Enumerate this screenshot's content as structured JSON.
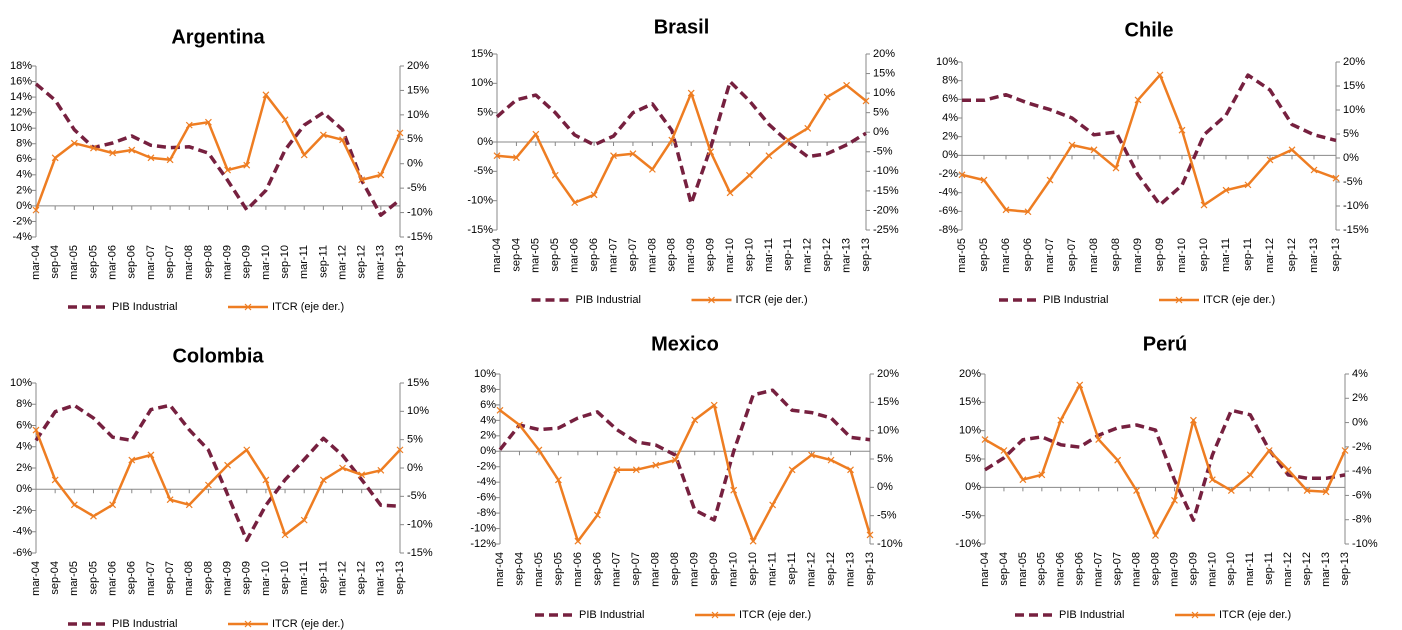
{
  "chart_data": [
    {
      "type": "line",
      "title": "Argentina",
      "categories": [
        "mar-04",
        "sep-04",
        "mar-05",
        "sep-05",
        "mar-06",
        "sep-06",
        "mar-07",
        "sep-07",
        "mar-08",
        "sep-08",
        "mar-09",
        "sep-09",
        "mar-10",
        "sep-10",
        "mar-11",
        "sep-11",
        "mar-12",
        "sep-12",
        "mar-13",
        "sep-13"
      ],
      "series": [
        {
          "name": "PIB Industrial",
          "color": "#76203f",
          "values": [
            15.7,
            13.6,
            9.8,
            7.5,
            8.1,
            9.0,
            7.8,
            7.5,
            7.6,
            6.8,
            3.3,
            -0.5,
            2.0,
            7.2,
            10.4,
            12.0,
            9.8,
            3.3,
            -1.2,
            0.8
          ]
        },
        {
          "name": "ITCR (eje der.)",
          "color": "#ee7d22",
          "axis": "y2",
          "values": [
            -9.5,
            1.2,
            4.2,
            3.2,
            2.2,
            2.8,
            1.2,
            0.8,
            7.9,
            8.5,
            -1.3,
            -0.3,
            14.1,
            9.0,
            1.8,
            5.9,
            4.9,
            -3.3,
            -2.3,
            6.3
          ]
        }
      ],
      "ylim": [
        -4,
        18
      ],
      "yticks": [
        {
          "value": -4,
          "label": "-4%"
        },
        {
          "value": -2,
          "label": "-2%"
        },
        {
          "value": 0,
          "label": "0%"
        },
        {
          "value": 2,
          "label": "2%"
        },
        {
          "value": 4,
          "label": "4%"
        },
        {
          "value": 6,
          "label": "6%"
        },
        {
          "value": 8,
          "label": "8%"
        },
        {
          "value": 10,
          "label": "10%"
        },
        {
          "value": 12,
          "label": "12%"
        },
        {
          "value": 14,
          "label": "14%"
        },
        {
          "value": 16,
          "label": "16%"
        },
        {
          "value": 18,
          "label": "18%"
        }
      ],
      "y2lim": [
        -15,
        20
      ],
      "y2ticks": [
        {
          "value": -15,
          "label": "-15%"
        },
        {
          "value": -10,
          "label": "-10%"
        },
        {
          "value": -5,
          "label": "-5%"
        },
        {
          "value": 0,
          "label": "0%"
        },
        {
          "value": 5,
          "label": "5%"
        },
        {
          "value": 10,
          "label": "10%"
        },
        {
          "value": 15,
          "label": "15%"
        },
        {
          "value": 20,
          "label": "20%"
        }
      ]
    },
    {
      "type": "line",
      "title": "Brasil",
      "categories": [
        "mar-04",
        "sep-04",
        "mar-05",
        "sep-05",
        "mar-06",
        "sep-06",
        "mar-07",
        "sep-07",
        "mar-08",
        "sep-08",
        "mar-09",
        "sep-09",
        "mar-10",
        "sep-10",
        "mar-11",
        "sep-11",
        "mar-12",
        "sep-12",
        "mar-13",
        "sep-13"
      ],
      "series": [
        {
          "name": "PIB Industrial",
          "color": "#76203f",
          "values": [
            4.3,
            7.2,
            8.0,
            5.0,
            1.2,
            -0.5,
            1.0,
            5.0,
            6.5,
            2.0,
            -10.5,
            -1.0,
            10.3,
            7.0,
            3.0,
            0.0,
            -2.5,
            -2.0,
            -0.5,
            1.5
          ]
        },
        {
          "name": "ITCR (eje der.)",
          "color": "#ee7d22",
          "axis": "y2",
          "values": [
            -6.0,
            -6.5,
            -0.5,
            -11.0,
            -18.0,
            -16.0,
            -6.0,
            -5.5,
            -9.5,
            -2.0,
            10.0,
            -5.0,
            -15.5,
            -11.0,
            -6.0,
            -2.0,
            1.0,
            9.0,
            12.0,
            8.0
          ]
        }
      ],
      "ylim": [
        -15,
        15
      ],
      "yticks": [
        {
          "value": -15,
          "label": "-15%"
        },
        {
          "value": -10,
          "label": "-10%"
        },
        {
          "value": -5,
          "label": "-5%"
        },
        {
          "value": 0,
          "label": "0%"
        },
        {
          "value": 5,
          "label": "5%"
        },
        {
          "value": 10,
          "label": "10%"
        },
        {
          "value": 15,
          "label": "15%"
        }
      ],
      "y2lim": [
        -25,
        20
      ],
      "y2ticks": [
        {
          "value": -25,
          "label": "-25%"
        },
        {
          "value": -20,
          "label": "-20%"
        },
        {
          "value": -15,
          "label": "-15%"
        },
        {
          "value": -10,
          "label": "-10%"
        },
        {
          "value": -5,
          "label": "-5%"
        },
        {
          "value": 0,
          "label": "0%"
        },
        {
          "value": 5,
          "label": "5%"
        },
        {
          "value": 10,
          "label": "10%"
        },
        {
          "value": 15,
          "label": "15%"
        },
        {
          "value": 20,
          "label": "20%"
        }
      ]
    },
    {
      "type": "line",
      "title": "Chile",
      "categories": [
        "mar-05",
        "sep-05",
        "mar-06",
        "sep-06",
        "mar-07",
        "sep-07",
        "mar-08",
        "sep-08",
        "mar-09",
        "sep-09",
        "mar-10",
        "sep-10",
        "mar-11",
        "sep-11",
        "mar-12",
        "sep-12",
        "mar-13",
        "sep-13"
      ],
      "series": [
        {
          "name": "PIB Industrial",
          "color": "#76203f",
          "values": [
            5.9,
            5.9,
            6.5,
            5.6,
            4.9,
            4.0,
            2.2,
            2.5,
            -2.1,
            -5.3,
            -3.2,
            2.2,
            4.3,
            8.6,
            7.0,
            3.3,
            2.2,
            1.6
          ]
        },
        {
          "name": "ITCR (eje der.)",
          "color": "#ee7d22",
          "axis": "y2",
          "values": [
            -3.5,
            -4.6,
            -10.8,
            -11.2,
            -4.6,
            2.7,
            1.7,
            -2.1,
            12.1,
            17.3,
            5.8,
            -9.8,
            -6.7,
            -5.6,
            -0.4,
            1.7,
            -2.5,
            -4.2
          ]
        }
      ],
      "ylim": [
        -8,
        10
      ],
      "yticks": [
        {
          "value": -8,
          "label": "-8%"
        },
        {
          "value": -6,
          "label": "-6%"
        },
        {
          "value": -4,
          "label": "-4%"
        },
        {
          "value": -2,
          "label": "-2%"
        },
        {
          "value": 0,
          "label": "0%"
        },
        {
          "value": 2,
          "label": "2%"
        },
        {
          "value": 4,
          "label": "4%"
        },
        {
          "value": 6,
          "label": "6%"
        },
        {
          "value": 8,
          "label": "8%"
        },
        {
          "value": 10,
          "label": "10%"
        }
      ],
      "y2lim": [
        -15,
        20
      ],
      "y2ticks": [
        {
          "value": -15,
          "label": "-15%"
        },
        {
          "value": -10,
          "label": "-10%"
        },
        {
          "value": -5,
          "label": "-5%"
        },
        {
          "value": 0,
          "label": "0%"
        },
        {
          "value": 5,
          "label": "5%"
        },
        {
          "value": 10,
          "label": "10%"
        },
        {
          "value": 15,
          "label": "15%"
        },
        {
          "value": 20,
          "label": "20%"
        }
      ]
    },
    {
      "type": "line",
      "title": "Colombia",
      "categories": [
        "mar-04",
        "sep-04",
        "mar-05",
        "sep-05",
        "mar-06",
        "sep-06",
        "mar-07",
        "sep-07",
        "mar-08",
        "sep-08",
        "mar-09",
        "sep-09",
        "mar-10",
        "sep-10",
        "mar-11",
        "sep-11",
        "mar-12",
        "sep-12",
        "mar-13",
        "sep-13"
      ],
      "series": [
        {
          "name": "PIB Industrial",
          "color": "#76203f",
          "values": [
            4.6,
            7.3,
            7.9,
            6.7,
            4.9,
            4.6,
            7.5,
            7.9,
            5.6,
            3.7,
            -0.5,
            -4.8,
            -1.5,
            0.9,
            2.8,
            4.8,
            3.2,
            0.9,
            -1.5,
            -1.6
          ]
        },
        {
          "name": "ITCR (eje der.)",
          "color": "#ee7d22",
          "axis": "y2",
          "values": [
            6.7,
            -2.1,
            -6.5,
            -8.5,
            -6.5,
            1.4,
            2.3,
            -5.6,
            -6.5,
            -3.0,
            0.5,
            3.2,
            -2.1,
            -11.8,
            -9.2,
            -2.1,
            0.0,
            -1.2,
            -0.4,
            3.2
          ]
        }
      ],
      "ylim": [
        -6,
        10
      ],
      "yticks": [
        {
          "value": -6,
          "label": "-6%"
        },
        {
          "value": -4,
          "label": "-4%"
        },
        {
          "value": -2,
          "label": "-2%"
        },
        {
          "value": 0,
          "label": "0%"
        },
        {
          "value": 2,
          "label": "2%"
        },
        {
          "value": 4,
          "label": "4%"
        },
        {
          "value": 6,
          "label": "6%"
        },
        {
          "value": 8,
          "label": "8%"
        },
        {
          "value": 10,
          "label": "10%"
        }
      ],
      "y2lim": [
        -15,
        15
      ],
      "y2ticks": [
        {
          "value": -15,
          "label": "-15%"
        },
        {
          "value": -10,
          "label": "-10%"
        },
        {
          "value": -5,
          "label": "-5%"
        },
        {
          "value": 0,
          "label": "0%"
        },
        {
          "value": 5,
          "label": "5%"
        },
        {
          "value": 10,
          "label": "10%"
        },
        {
          "value": 15,
          "label": "15%"
        }
      ]
    },
    {
      "type": "line",
      "title": "Mexico",
      "categories": [
        "mar-04",
        "sep-04",
        "mar-05",
        "sep-05",
        "mar-06",
        "sep-06",
        "mar-07",
        "sep-07",
        "mar-08",
        "sep-08",
        "mar-09",
        "sep-09",
        "mar-10",
        "sep-10",
        "mar-11",
        "sep-11",
        "mar-12",
        "sep-12",
        "mar-13",
        "sep-13"
      ],
      "series": [
        {
          "name": "PIB Industrial",
          "color": "#76203f",
          "values": [
            0.2,
            3.4,
            2.8,
            3.0,
            4.3,
            5.1,
            2.8,
            1.2,
            0.8,
            -0.5,
            -7.6,
            -8.9,
            0.0,
            7.3,
            7.9,
            5.3,
            5.0,
            4.3,
            1.8,
            1.5
          ]
        },
        {
          "name": "ITCR (eje der.)",
          "color": "#ee7d22",
          "axis": "y2",
          "values": [
            13.6,
            11.0,
            6.6,
            1.3,
            -9.5,
            -4.9,
            3.1,
            3.1,
            3.9,
            4.8,
            11.9,
            14.5,
            -0.5,
            -9.5,
            -3.1,
            3.1,
            5.7,
            4.8,
            3.1,
            -8.4
          ]
        }
      ],
      "ylim": [
        -12,
        10
      ],
      "yticks": [
        {
          "value": -12,
          "label": "-12%"
        },
        {
          "value": -10,
          "label": "-10%"
        },
        {
          "value": -8,
          "label": "-8%"
        },
        {
          "value": -6,
          "label": "-6%"
        },
        {
          "value": -4,
          "label": "-4%"
        },
        {
          "value": -2,
          "label": "-2%"
        },
        {
          "value": 0,
          "label": "0%"
        },
        {
          "value": 2,
          "label": "2%"
        },
        {
          "value": 4,
          "label": "4%"
        },
        {
          "value": 6,
          "label": "6%"
        },
        {
          "value": 8,
          "label": "8%"
        },
        {
          "value": 10,
          "label": "10%"
        }
      ],
      "y2lim": [
        -10,
        20
      ],
      "y2ticks": [
        {
          "value": -10,
          "label": "-10%"
        },
        {
          "value": -5,
          "label": "-5%"
        },
        {
          "value": 0,
          "label": "0%"
        },
        {
          "value": 5,
          "label": "5%"
        },
        {
          "value": 10,
          "label": "10%"
        },
        {
          "value": 15,
          "label": "15%"
        },
        {
          "value": 20,
          "label": "20%"
        }
      ]
    },
    {
      "type": "line",
      "title": "Perú",
      "categories": [
        "mar-04",
        "sep-04",
        "mar-05",
        "sep-05",
        "mar-06",
        "sep-06",
        "mar-07",
        "sep-07",
        "mar-08",
        "sep-08",
        "mar-09",
        "sep-09",
        "mar-10",
        "sep-10",
        "mar-11",
        "sep-11",
        "mar-12",
        "sep-12",
        "mar-13",
        "sep-13"
      ],
      "series": [
        {
          "name": "PIB Industrial",
          "color": "#76203f",
          "values": [
            3.1,
            5.2,
            8.4,
            8.9,
            7.5,
            7.1,
            9.2,
            10.5,
            11.0,
            10.1,
            1.3,
            -5.8,
            5.7,
            13.6,
            12.8,
            6.6,
            2.2,
            1.6,
            1.6,
            2.2
          ]
        },
        {
          "name": "ITCR (eje der.)",
          "color": "#ee7d22",
          "axis": "y2",
          "values": [
            -1.4,
            -2.3,
            -4.7,
            -4.3,
            0.2,
            3.1,
            -1.4,
            -3.1,
            -5.6,
            -9.3,
            -6.4,
            0.2,
            -4.7,
            -5.6,
            -4.3,
            -2.3,
            -3.9,
            -5.6,
            -5.7,
            -2.3
          ]
        }
      ],
      "ylim": [
        -10,
        20
      ],
      "yticks": [
        {
          "value": -10,
          "label": "-10%"
        },
        {
          "value": -5,
          "label": "-5%"
        },
        {
          "value": 0,
          "label": "0%"
        },
        {
          "value": 5,
          "label": "5%"
        },
        {
          "value": 10,
          "label": "10%"
        },
        {
          "value": 15,
          "label": "15%"
        },
        {
          "value": 20,
          "label": "20%"
        }
      ],
      "y2lim": [
        -10,
        4
      ],
      "y2ticks": [
        {
          "value": -10,
          "label": "-10%"
        },
        {
          "value": -8,
          "label": "-8%"
        },
        {
          "value": -6,
          "label": "-6%"
        },
        {
          "value": -4,
          "label": "-4%"
        },
        {
          "value": -2,
          "label": "-2%"
        },
        {
          "value": 0,
          "label": "0%"
        },
        {
          "value": 2,
          "label": "2%"
        },
        {
          "value": 4,
          "label": "4%"
        }
      ]
    }
  ]
}
